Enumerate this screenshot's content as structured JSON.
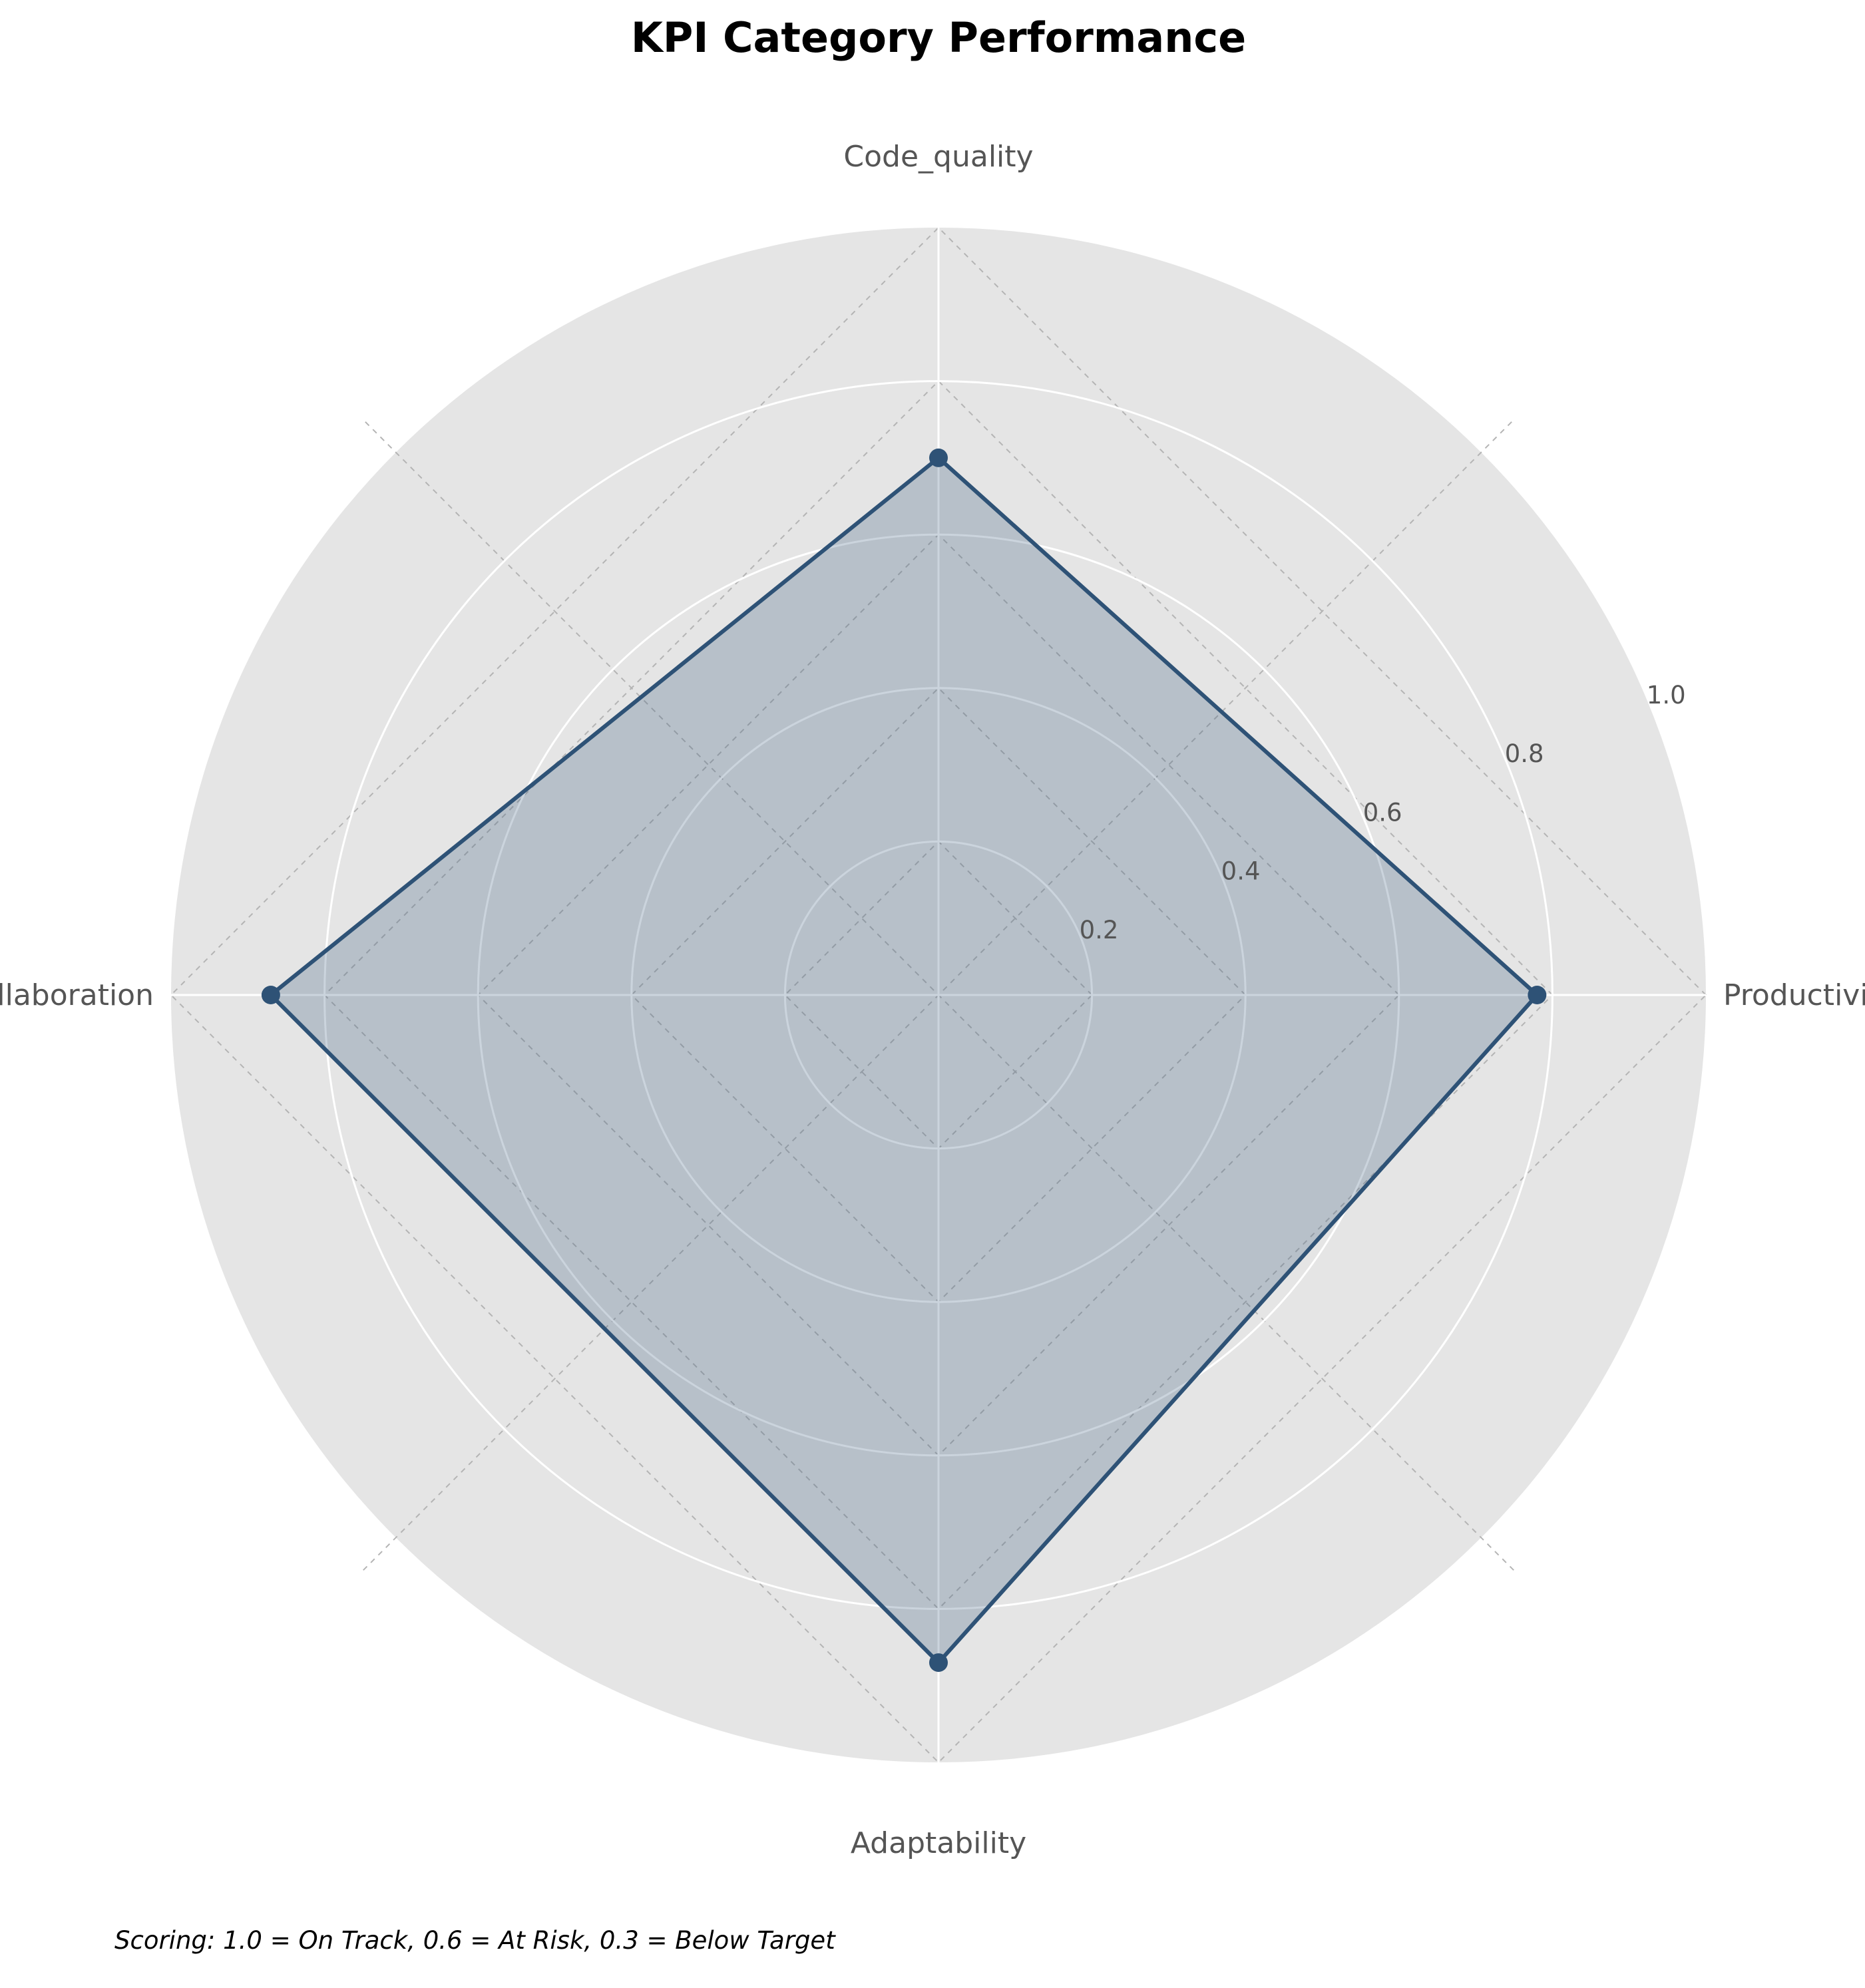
{
  "chart_data": {
    "type": "radar",
    "title": "KPI Category Performance",
    "categories": [
      "Productivity",
      "Code_quality",
      "Collaboration",
      "Adaptability"
    ],
    "series": [
      {
        "values": [
          0.78,
          0.7,
          0.87,
          0.87
        ],
        "color": "#2e5276"
      }
    ],
    "rlim": [
      0,
      1.0
    ],
    "rticks": [
      0.2,
      0.4,
      0.6,
      0.8,
      1.0
    ],
    "rtick_labels": [
      "0.2",
      "0.4",
      "0.6",
      "0.8",
      "1.0"
    ],
    "grid": true,
    "background": "#e5e5e5",
    "annotation": "Scoring: 1.0 = On Track, 0.6 = At Risk, 0.3 = Below Target"
  }
}
